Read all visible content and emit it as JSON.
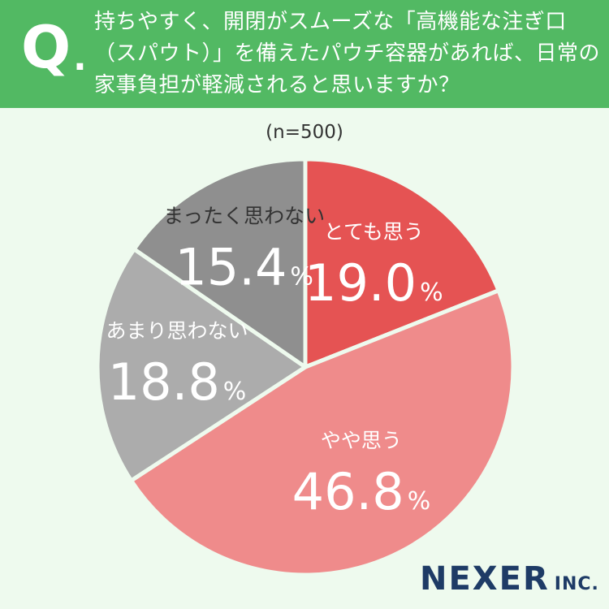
{
  "question": {
    "mark": "Q",
    "dot": ".",
    "lines": [
      "持ちやすく、開閉がスムーズな「高機能な注ぎ口",
      "（スパウト）」を備えたパウチ容器があれば、日常の",
      "家事負担が軽減されると思いますか？"
    ]
  },
  "sample_size": "(n=500)",
  "logo": {
    "main": "NEXER",
    "sub": "INC."
  },
  "colors": {
    "header": "#52b963",
    "background": "#eefaee",
    "logo": "#1e3b66"
  },
  "chart_data": {
    "type": "pie",
    "start": "12 o'clock, clockwise",
    "slices": [
      {
        "label": "とても思う",
        "value": 19.0,
        "display": "19.0",
        "unit": "%",
        "color": "#e55353"
      },
      {
        "label": "やや思う",
        "value": 46.8,
        "display": "46.8",
        "unit": "%",
        "color": "#ef8b8b"
      },
      {
        "label": "あまり思わない",
        "value": 18.8,
        "display": "18.8",
        "unit": "%",
        "color": "#acacac"
      },
      {
        "label": "まったく思わない",
        "value": 15.4,
        "display": "15.4",
        "unit": "%",
        "color": "#8f8f8f"
      }
    ]
  }
}
